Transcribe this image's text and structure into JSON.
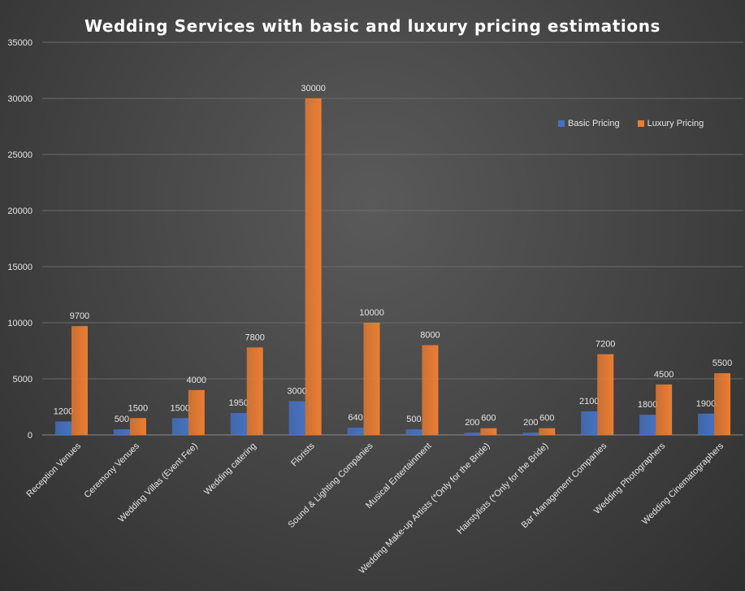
{
  "chart_data": {
    "type": "bar",
    "title": "Wedding Services with basic and luxury pricing estimations",
    "xlabel": "",
    "ylabel": "",
    "ylim": [
      0,
      35000
    ],
    "yticks": [
      0,
      5000,
      10000,
      15000,
      20000,
      25000,
      30000,
      35000
    ],
    "grid": true,
    "legend_position": "top-right",
    "categories": [
      "Reception Venues",
      "Ceremony Venues",
      "Wedding Villas (Event Fee)",
      "Wedding catering",
      "Florists",
      "Sound & Lighting Companies",
      "Musical Entertainment",
      "Wedding Make-up Artists (*Only for the Bride)",
      "Hairstylists (*Only for the Bride)",
      "Bar Management Companies",
      "Wedding Photographers",
      "Wedding Cinematographers"
    ],
    "series": [
      {
        "name": "Basic Pricing",
        "color": "#4472c4",
        "values": [
          1200,
          500,
          1500,
          1950,
          3000,
          640,
          500,
          200,
          200,
          2100,
          1800,
          1900
        ]
      },
      {
        "name": "Luxury Pricing",
        "color": "#ed7d31",
        "values": [
          9700,
          1500,
          4000,
          7800,
          30000,
          10000,
          8000,
          600,
          600,
          7200,
          4500,
          5500
        ]
      }
    ]
  }
}
